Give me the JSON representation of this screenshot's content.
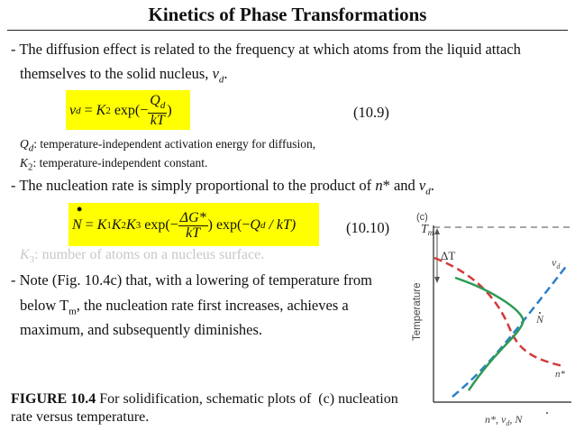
{
  "title": "Kinetics of Phase Transformations",
  "para1": {
    "line1": "- The diffusion effect is related to the frequency at which atoms from the liquid attach",
    "line2_prefix": "themselves to the solid nucleus, ",
    "line2_var": "v",
    "line2_sub": "d",
    "line2_suffix": "."
  },
  "eq1": {
    "lhs_var": "v",
    "lhs_sub": "d",
    "eq_sign": " = ",
    "k_var": "K",
    "k_sub": "2",
    "exp_text": " exp(−",
    "num_var": "Q",
    "num_sub": "d",
    "den_text": "kT",
    "close": ")",
    "number": "(10.9)"
  },
  "defs": {
    "qd_var": "Q",
    "qd_sub": "d",
    "qd_text": ": temperature-independent activation energy for diffusion,",
    "k2_var": "K",
    "k2_sub": "2",
    "k2_text": ": temperature-independent constant."
  },
  "para2": {
    "prefix": "- The nucleation rate is simply proportional to the product of ",
    "nstar": "n",
    "star": "*",
    "and": " and ",
    "vd_var": "v",
    "vd_sub": "d",
    "suffix": "."
  },
  "eq2": {
    "dot": "•",
    "lhs_var": "N",
    "eq_sign": " = ",
    "k1": "K",
    "k1_sub": "1",
    "k2": "K",
    "k2_sub": "2",
    "k3": "K",
    "k3_sub": "3",
    "exp1": " exp(−",
    "num_text": "ΔG*",
    "den_text": "kT",
    "exp2": ") exp(−",
    "q_var": "Q",
    "q_sub": "d",
    "tail": " / kT)",
    "number": "(10.10)"
  },
  "faded_line": {
    "var": "K",
    "sub": "3",
    "text": ": number of atoms on a nucleus surface."
  },
  "para3": {
    "line1": "- Note (Fig. 10.4c) that, with a lowering of temperature from",
    "line2_prefix": "below T",
    "line2_sub": "m",
    "line2_suffix": ", the nucleation rate first increases, achieves a",
    "line3": "maximum, and subsequently diminishes."
  },
  "caption": {
    "bold": "FIGURE 10.4",
    "line1_rest": " For solidification, schematic plots of  (c) nucleation",
    "line2": "rate versus temperature."
  },
  "figure": {
    "panel_label": "(c)",
    "tm_label": "T",
    "tm_sub": "m",
    "delta_label": "ΔT",
    "vd_label": "v",
    "vd_sub": "d",
    "ndot_label": "N",
    "nstar_label": "n*",
    "y_axis_label": "Temperature",
    "x_axis_label": "n*, v",
    "x_axis_sub": "d",
    "x_axis_tail": ", N",
    "colors": {
      "vd": "#2c80c8",
      "nstar": "#d23a3a",
      "ndot": "#2e9a55",
      "dashed": "#888888"
    }
  }
}
